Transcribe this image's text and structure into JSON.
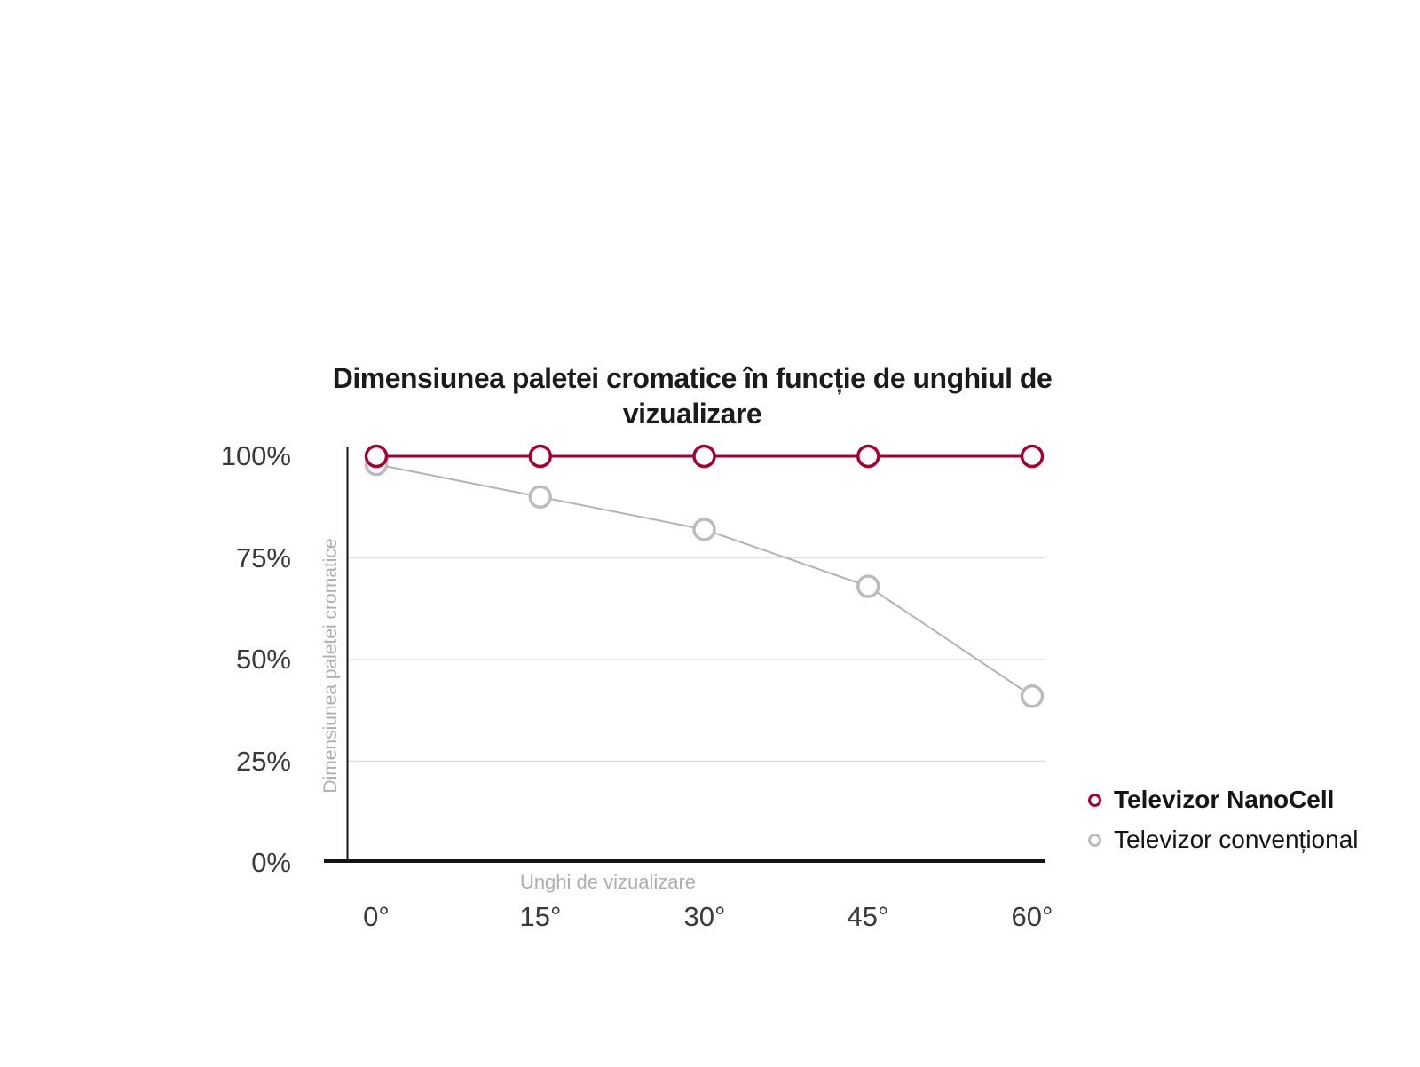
{
  "title": "Dimensiunea paletei cromatice în funcție de unghiul de vizualizare",
  "chart_data": {
    "type": "line",
    "categories": [
      "0°",
      "15°",
      "30°",
      "45°",
      "60°"
    ],
    "series": [
      {
        "name": "Televizor NanoCell",
        "values": [
          100,
          100,
          100,
          100,
          100
        ],
        "color": "#a50034",
        "line_color": "#a50034",
        "line_width": 3
      },
      {
        "name": "Televizor convențional",
        "values": [
          98,
          90,
          82,
          68,
          41
        ],
        "color": "#bcbcbc",
        "line_color": "#b3b3b3",
        "line_width": 2
      }
    ],
    "xlabel": "Unghi de vizualizare",
    "ylabel": "Dimensiunea paletei cromatice",
    "yticklabels": [
      "100%",
      "75%",
      "50%",
      "25%",
      "0%"
    ],
    "ytickvalues": [
      100,
      75,
      50,
      25,
      0
    ],
    "ylim": [
      0,
      100
    ],
    "grid": {
      "values": [
        75,
        50,
        25
      ],
      "color": "#e0e0e0"
    },
    "legend_position": "right-bottom",
    "style": {
      "axis_color": "#141414",
      "tick_color": "#3a3a3a",
      "axis_title_color": "#aeaeae",
      "marker_fill": "#ffffff"
    }
  }
}
